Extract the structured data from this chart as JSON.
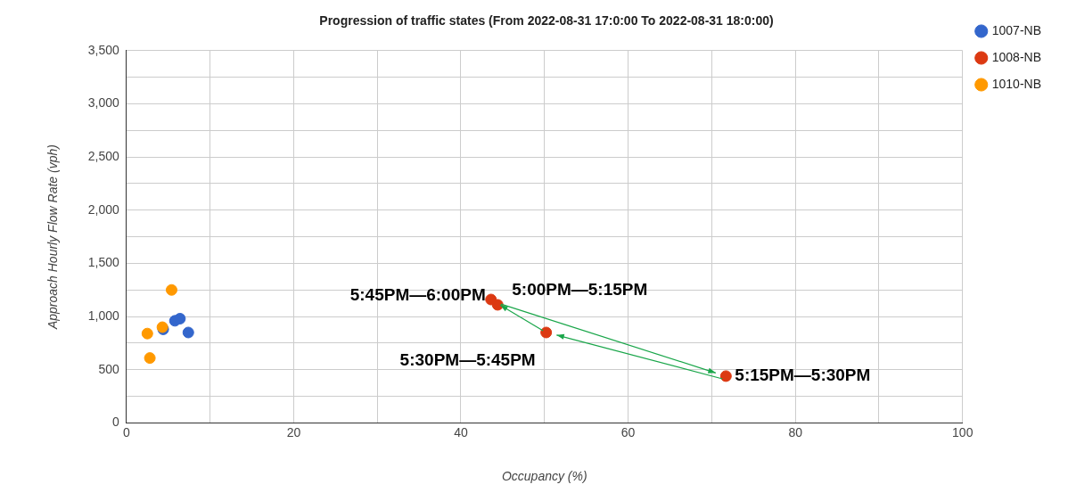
{
  "chart_data": {
    "type": "scatter",
    "title": "Progression of traffic states (From 2022-08-31 17:0:00 To 2022-08-31 18:0:00)",
    "xlabel": "Occupancy (%)",
    "ylabel": "Approach Hourly Flow Rate (vph)",
    "series": [
      {
        "name": "1007-NB",
        "color": "#3366cc",
        "x": [
          4.4,
          5.8,
          6.4,
          7.4
        ],
        "values": [
          880,
          960,
          980,
          850
        ]
      },
      {
        "name": "1008-NB",
        "color": "#dc3912",
        "x": [
          44.4,
          71.7,
          50.2,
          43.6
        ],
        "values": [
          1110,
          440,
          850,
          1160
        ]
      },
      {
        "name": "1010-NB",
        "color": "#ff9900",
        "x": [
          5.4,
          4.3,
          2.5,
          2.8
        ],
        "values": [
          1250,
          900,
          840,
          610
        ]
      }
    ],
    "xlim": [
      0,
      100
    ],
    "xticks": [
      0,
      {
        "value": 10,
        "label": null
      },
      20,
      {
        "value": 30,
        "label": null
      },
      40,
      {
        "value": 50,
        "label": null
      },
      60,
      {
        "value": 70,
        "label": null
      },
      80,
      {
        "value": 90,
        "label": null
      },
      100
    ],
    "ylim": [
      0,
      3500
    ],
    "yticks": [
      0,
      {
        "value": 250,
        "label": null
      },
      500,
      {
        "value": 750,
        "label": null
      },
      {
        "value": 1000,
        "label": "1,000"
      },
      {
        "value": 1250,
        "label": null
      },
      {
        "value": 1500,
        "label": "1,500"
      },
      {
        "value": 1750,
        "label": null
      },
      {
        "value": 2000,
        "label": "2,000"
      },
      {
        "value": 2250,
        "label": null
      },
      {
        "value": 2500,
        "label": "2,500"
      },
      {
        "value": 2750,
        "label": null
      },
      {
        "value": 3000,
        "label": "3,000"
      },
      {
        "value": 3250,
        "label": null
      },
      {
        "value": 3500,
        "label": "3,500"
      }
    ],
    "grid": true,
    "legend": "top right",
    "marker": "circle",
    "annotations": [
      {
        "text": "5:00PM—5:15PM",
        "x": 44.4,
        "y": 1110
      },
      {
        "text": "5:15PM—5:30PM",
        "x": 71.7,
        "y": 440
      },
      {
        "text": "5:30PM—5:45PM",
        "x": 50.2,
        "y": 850
      },
      {
        "text": "5:45PM—6:00PM",
        "x": 43.6,
        "y": 1160
      }
    ]
  }
}
